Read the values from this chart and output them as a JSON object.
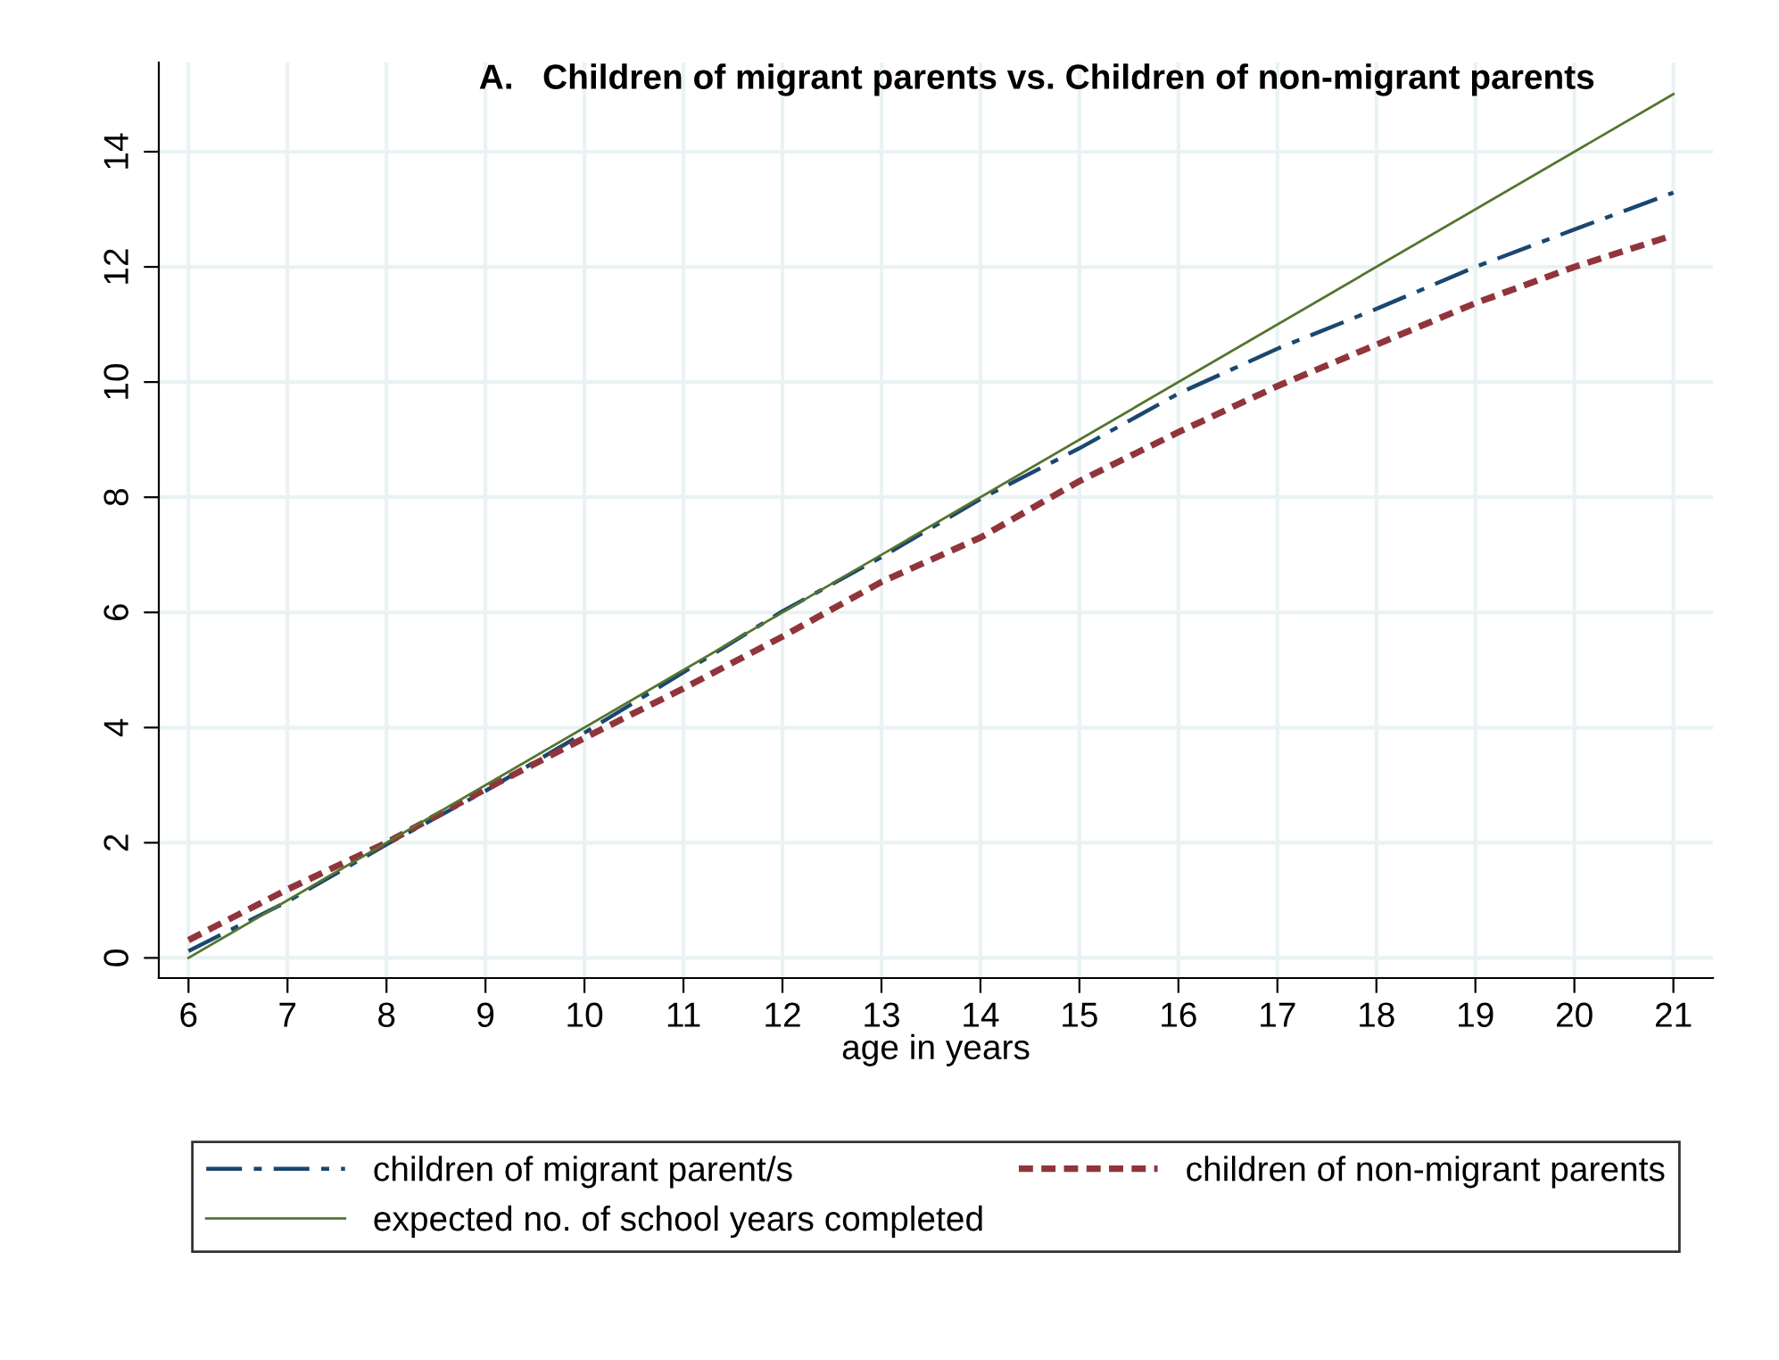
{
  "chart_data": {
    "type": "line",
    "title": "A.   Children of migrant parents vs. Children of non-migrant parents",
    "xlabel": "age in years",
    "x": [
      6,
      7,
      8,
      9,
      10,
      11,
      12,
      13,
      14,
      15,
      16,
      17,
      18,
      19,
      20,
      21
    ],
    "series": [
      {
        "name": "children of migrant parent/s",
        "color": "#1a476f",
        "line_style": "dashed",
        "values": [
          0.12,
          0.98,
          1.97,
          2.9,
          3.91,
          4.96,
          6.02,
          6.96,
          7.97,
          8.85,
          9.8,
          10.58,
          11.27,
          12.0,
          12.65,
          13.29
        ]
      },
      {
        "name": "children of non-migrant parents",
        "color": "#90353b",
        "line_style": "dotted",
        "values": [
          0.31,
          1.19,
          2.0,
          2.93,
          3.82,
          4.68,
          5.58,
          6.53,
          7.3,
          8.28,
          9.13,
          9.93,
          10.65,
          11.37,
          12.0,
          12.55
        ]
      },
      {
        "name": "expected no. of school years completed",
        "color": "#55752f",
        "line_style": "solid",
        "x": [
          6,
          21
        ],
        "values": [
          0,
          15
        ]
      }
    ],
    "xlim": [
      5.7,
      21.4
    ],
    "xticks": [
      6,
      7,
      8,
      9,
      10,
      11,
      12,
      13,
      14,
      15,
      16,
      17,
      18,
      19,
      20,
      21
    ],
    "ylim": [
      -0.35,
      15.55
    ],
    "yticks": [
      0,
      2,
      4,
      6,
      8,
      10,
      12,
      14
    ],
    "grid": true,
    "legend": "bottom",
    "marker": "none"
  }
}
